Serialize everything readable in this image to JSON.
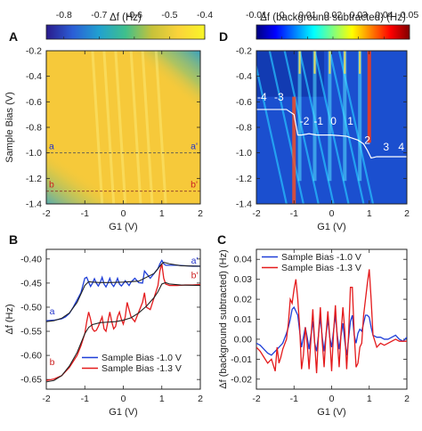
{
  "colors": {
    "map_scale": [
      "#2a1a8c",
      "#2b5ed6",
      "#21a1d0",
      "#3fc08c",
      "#c6c23a",
      "#fbd33a",
      "#f8f528"
    ],
    "jet_scale": [
      "#00007f",
      "#0000ff",
      "#007fff",
      "#00ffff",
      "#7fff7f",
      "#ffff00",
      "#ff7f00",
      "#ff0000",
      "#7f0000"
    ],
    "series_blue": "#1f3fd8",
    "series_red": "#e41a1c",
    "fit_black": "#222222",
    "marker_blue": "#2233cc",
    "marker_red": "#cc2222"
  },
  "chart_data": [
    {
      "id": "A",
      "type": "heatmap",
      "panel_label": "A",
      "colorbar": {
        "title": "Δf (Hz)",
        "range": [
          -0.85,
          -0.4
        ],
        "ticks": [
          "-0.8",
          "-0.7",
          "-0.6",
          "-0.5",
          "-0.4"
        ],
        "tick_values": [
          -0.8,
          -0.7,
          -0.6,
          -0.5,
          -0.4
        ]
      },
      "xlabel": "G1 (V)",
      "ylabel": "Sample Bias (V)",
      "xlim": [
        -2,
        2
      ],
      "ylim": [
        -1.4,
        -0.2
      ],
      "xticks": [
        -2,
        -1,
        0,
        1,
        2
      ],
      "xtick_labels": [
        "-2",
        "-1",
        "0",
        "1",
        "2"
      ],
      "yticks": [
        -0.2,
        -0.4,
        -0.6,
        -0.8,
        -1.0,
        -1.2,
        -1.4
      ],
      "ytick_labels": [
        "-0.2",
        "-0.4",
        "-0.6",
        "-0.8",
        "-1.0",
        "-1.2",
        "-1.4"
      ],
      "cut_lines": [
        {
          "bias": -1.0,
          "label_left": "a",
          "label_right": "a'"
        },
        {
          "bias": -1.3,
          "label_left": "b",
          "label_right": "b'"
        }
      ]
    },
    {
      "id": "D",
      "type": "heatmap",
      "panel_label": "D",
      "colorbar": {
        "title": "Δf (background subtracted) (Hz)",
        "range": [
          -0.01,
          0.05
        ],
        "ticks": [
          "-0.01",
          "0",
          "0.01",
          "0.02",
          "0.03",
          "0.04",
          "0.05"
        ],
        "tick_values": [
          -0.01,
          0,
          0.01,
          0.02,
          0.03,
          0.04,
          0.05
        ]
      },
      "xlabel": "G1 (V)",
      "xlim": [
        -2,
        2
      ],
      "ylim": [
        -1.4,
        -0.2
      ],
      "xticks": [
        -2,
        -1,
        0,
        1,
        2
      ],
      "xtick_labels": [
        "-2",
        "-1",
        "0",
        "1",
        "2"
      ],
      "yticks": [
        -0.2,
        -0.4,
        -0.6,
        -0.8,
        -1.0,
        -1.2,
        -1.4
      ],
      "ytick_labels": [
        "-0.2",
        "-0.4",
        "-0.6",
        "-0.8",
        "-1.0",
        "-1.2",
        "-1.4"
      ],
      "charge_labels": [
        {
          "text": "-4",
          "g1": -1.85,
          "bias": -0.59
        },
        {
          "text": "-3",
          "g1": -1.4,
          "bias": -0.59
        },
        {
          "text": "-2",
          "g1": -0.72,
          "bias": -0.78
        },
        {
          "text": "-1",
          "g1": -0.35,
          "bias": -0.78
        },
        {
          "text": "0",
          "g1": 0.05,
          "bias": -0.78
        },
        {
          "text": "1",
          "g1": 0.5,
          "bias": -0.78
        },
        {
          "text": "2",
          "g1": 0.95,
          "bias": -0.93
        },
        {
          "text": "3",
          "g1": 1.45,
          "bias": -0.98
        },
        {
          "text": "4",
          "g1": 1.85,
          "bias": -0.98
        }
      ],
      "step_line": {
        "g1": [
          -2.0,
          -1.2,
          -1.0,
          -0.95,
          -0.9,
          -0.8,
          -0.6,
          -0.4,
          0.0,
          0.4,
          0.7,
          0.85,
          0.95,
          1.05,
          1.2,
          2.0
        ],
        "bias": [
          -0.66,
          -0.66,
          -0.7,
          -0.78,
          -0.86,
          -0.86,
          -0.85,
          -0.86,
          -0.86,
          -0.87,
          -0.9,
          -0.93,
          -0.98,
          -1.04,
          -1.03,
          -1.03
        ]
      }
    },
    {
      "id": "B",
      "type": "line",
      "panel_label": "B",
      "xlabel": "G1 (V)",
      "ylabel": "Δf (Hz)",
      "xlim": [
        -2,
        2
      ],
      "ylim": [
        -0.67,
        -0.38
      ],
      "xticks": [
        -2,
        -1,
        0,
        1,
        2
      ],
      "xtick_labels": [
        "-2",
        "-1",
        "0",
        "1",
        "2"
      ],
      "yticks": [
        -0.4,
        -0.45,
        -0.5,
        -0.55,
        -0.6,
        -0.65
      ],
      "ytick_labels": [
        "-0.40",
        "-0.45",
        "-0.50",
        "-0.55",
        "-0.60",
        "-0.65"
      ],
      "legend": {
        "position": "bottom-center",
        "entries": [
          "Sample Bias -1.0 V",
          "Sample Bias -1.3 V"
        ]
      },
      "markers": [
        {
          "text": "a",
          "g1": -1.85,
          "df": -0.515,
          "series": 0
        },
        {
          "text": "a'",
          "g1": 1.85,
          "df": -0.41,
          "series": 0
        },
        {
          "text": "b",
          "g1": -1.85,
          "df": -0.62,
          "series": 1
        },
        {
          "text": "b'",
          "g1": 1.85,
          "df": -0.44,
          "series": 1
        }
      ],
      "series": [
        {
          "name": "Sample Bias -1.0 V",
          "x": [
            -2.0,
            -1.8,
            -1.6,
            -1.5,
            -1.4,
            -1.3,
            -1.2,
            -1.1,
            -1.05,
            -1.0,
            -0.95,
            -0.9,
            -0.85,
            -0.8,
            -0.75,
            -0.7,
            -0.65,
            -0.6,
            -0.55,
            -0.5,
            -0.45,
            -0.4,
            -0.35,
            -0.3,
            -0.25,
            -0.2,
            -0.15,
            -0.1,
            -0.05,
            0.0,
            0.05,
            0.1,
            0.15,
            0.2,
            0.3,
            0.4,
            0.5,
            0.55,
            0.6,
            0.7,
            0.8,
            0.9,
            0.95,
            1.0,
            1.05,
            1.1,
            1.2,
            1.4,
            1.6,
            1.8,
            2.0
          ],
          "y": [
            -0.528,
            -0.527,
            -0.524,
            -0.52,
            -0.513,
            -0.5,
            -0.485,
            -0.47,
            -0.455,
            -0.44,
            -0.438,
            -0.448,
            -0.457,
            -0.45,
            -0.441,
            -0.45,
            -0.456,
            -0.449,
            -0.438,
            -0.452,
            -0.458,
            -0.45,
            -0.44,
            -0.452,
            -0.457,
            -0.45,
            -0.44,
            -0.452,
            -0.456,
            -0.451,
            -0.445,
            -0.45,
            -0.455,
            -0.448,
            -0.44,
            -0.449,
            -0.45,
            -0.425,
            -0.43,
            -0.44,
            -0.43,
            -0.42,
            -0.41,
            -0.403,
            -0.41,
            -0.413,
            -0.413,
            -0.413,
            -0.414,
            -0.415,
            -0.415
          ]
        },
        {
          "name": "Sample Bias -1.3 V",
          "x": [
            -2.0,
            -1.8,
            -1.6,
            -1.4,
            -1.2,
            -1.1,
            -1.0,
            -0.95,
            -0.9,
            -0.85,
            -0.8,
            -0.75,
            -0.7,
            -0.65,
            -0.6,
            -0.55,
            -0.5,
            -0.45,
            -0.4,
            -0.35,
            -0.3,
            -0.25,
            -0.2,
            -0.15,
            -0.1,
            -0.05,
            0.0,
            0.05,
            0.1,
            0.2,
            0.3,
            0.4,
            0.5,
            0.55,
            0.6,
            0.7,
            0.8,
            0.9,
            0.95,
            1.0,
            1.05,
            1.1,
            1.2,
            1.4,
            1.6,
            1.8,
            2.0
          ],
          "y": [
            -0.652,
            -0.649,
            -0.642,
            -0.625,
            -0.6,
            -0.58,
            -0.555,
            -0.53,
            -0.51,
            -0.525,
            -0.545,
            -0.55,
            -0.548,
            -0.54,
            -0.53,
            -0.52,
            -0.545,
            -0.55,
            -0.53,
            -0.51,
            -0.53,
            -0.545,
            -0.54,
            -0.52,
            -0.51,
            -0.525,
            -0.535,
            -0.52,
            -0.49,
            -0.52,
            -0.53,
            -0.51,
            -0.49,
            -0.47,
            -0.5,
            -0.505,
            -0.48,
            -0.455,
            -0.425,
            -0.41,
            -0.44,
            -0.452,
            -0.455,
            -0.455,
            -0.454,
            -0.454,
            -0.453
          ]
        },
        {
          "name": "",
          "x": [
            -2.0,
            -1.8,
            -1.6,
            -1.4,
            -1.2,
            -1.0,
            -0.9,
            -0.8,
            -0.6,
            -0.4,
            0.0,
            0.4,
            0.8,
            1.0,
            1.05,
            1.2,
            1.5,
            2.0
          ],
          "y": [
            -0.53,
            -0.528,
            -0.523,
            -0.512,
            -0.49,
            -0.455,
            -0.447,
            -0.448,
            -0.449,
            -0.449,
            -0.448,
            -0.446,
            -0.43,
            -0.41,
            -0.407,
            -0.41,
            -0.414,
            -0.415
          ]
        },
        {
          "name": "",
          "x": [
            -2.0,
            -1.8,
            -1.6,
            -1.4,
            -1.2,
            -1.0,
            -0.9,
            -0.8,
            -0.6,
            -0.4,
            -0.2,
            0.0,
            0.2,
            0.4,
            0.6,
            0.8,
            0.9,
            1.0,
            1.1,
            1.2,
            1.5,
            2.0
          ],
          "y": [
            -0.655,
            -0.652,
            -0.642,
            -0.622,
            -0.594,
            -0.555,
            -0.542,
            -0.536,
            -0.532,
            -0.531,
            -0.53,
            -0.527,
            -0.522,
            -0.512,
            -0.498,
            -0.48,
            -0.468,
            -0.452,
            -0.449,
            -0.452,
            -0.454,
            -0.455
          ]
        }
      ]
    },
    {
      "id": "C",
      "type": "line",
      "panel_label": "C",
      "xlabel": "G1 (V)",
      "ylabel": "Δf (background subtracted) (Hz)",
      "xlim": [
        -2,
        2
      ],
      "ylim": [
        -0.025,
        0.045
      ],
      "xticks": [
        -2,
        -1,
        0,
        1,
        2
      ],
      "xtick_labels": [
        "-2",
        "-1",
        "0",
        "1",
        "2"
      ],
      "yticks": [
        0.04,
        0.03,
        0.02,
        0.01,
        0.0,
        -0.01,
        -0.02
      ],
      "ytick_labels": [
        "0.04",
        "0.03",
        "0.02",
        "0.01",
        "0.00",
        "-0.01",
        "-0.02"
      ],
      "legend": {
        "position": "top-left",
        "entries": [
          "Sample Bias -1.0 V",
          "Sample Bias -1.3 V"
        ]
      },
      "series": [
        {
          "name": "Sample Bias -1.0 V",
          "x": [
            -2.0,
            -1.9,
            -1.8,
            -1.7,
            -1.6,
            -1.5,
            -1.4,
            -1.3,
            -1.2,
            -1.15,
            -1.1,
            -1.05,
            -1.0,
            -0.95,
            -0.9,
            -0.85,
            -0.8,
            -0.75,
            -0.7,
            -0.65,
            -0.6,
            -0.55,
            -0.5,
            -0.45,
            -0.4,
            -0.35,
            -0.3,
            -0.25,
            -0.2,
            -0.15,
            -0.1,
            -0.05,
            0.0,
            0.05,
            0.1,
            0.15,
            0.2,
            0.25,
            0.3,
            0.35,
            0.4,
            0.45,
            0.5,
            0.55,
            0.6,
            0.65,
            0.7,
            0.75,
            0.8,
            0.85,
            0.9,
            0.95,
            1.0,
            1.05,
            1.1,
            1.2,
            1.3,
            1.4,
            1.5,
            1.6,
            1.7,
            1.8,
            1.9,
            2.0
          ],
          "y": [
            -0.002,
            -0.003,
            -0.005,
            -0.007,
            -0.008,
            -0.006,
            -0.004,
            -0.002,
            0.003,
            0.006,
            0.01,
            0.015,
            0.016,
            0.014,
            0.012,
            0.004,
            -0.004,
            0.001,
            0.006,
            0.001,
            -0.005,
            0.002,
            0.009,
            -0.002,
            -0.006,
            0.002,
            0.011,
            0.001,
            -0.006,
            0.002,
            0.01,
            0.001,
            -0.004,
            0.004,
            0.012,
            0.002,
            -0.005,
            0.002,
            0.008,
            -0.001,
            -0.008,
            0.0,
            0.009,
            0.012,
            0.002,
            -0.002,
            0.003,
            0.005,
            0.004,
            0.008,
            0.012,
            0.012,
            0.011,
            0.006,
            0.002,
            0.001,
            0.001,
            0.0,
            0.0,
            0.001,
            0.002,
            0.0,
            -0.001,
            0.001
          ]
        },
        {
          "name": "Sample Bias -1.3 V",
          "x": [
            -2.0,
            -1.9,
            -1.8,
            -1.7,
            -1.6,
            -1.5,
            -1.45,
            -1.4,
            -1.35,
            -1.3,
            -1.2,
            -1.15,
            -1.1,
            -1.05,
            -1.0,
            -0.95,
            -0.9,
            -0.85,
            -0.8,
            -0.75,
            -0.7,
            -0.65,
            -0.6,
            -0.55,
            -0.5,
            -0.45,
            -0.4,
            -0.35,
            -0.3,
            -0.25,
            -0.2,
            -0.15,
            -0.1,
            -0.05,
            0.0,
            0.05,
            0.1,
            0.15,
            0.2,
            0.25,
            0.3,
            0.35,
            0.4,
            0.45,
            0.5,
            0.55,
            0.6,
            0.65,
            0.7,
            0.75,
            0.8,
            0.85,
            0.9,
            0.95,
            1.0,
            1.05,
            1.1,
            1.2,
            1.3,
            1.4,
            1.5,
            1.6,
            1.7,
            1.8,
            1.9,
            2.0
          ],
          "y": [
            -0.004,
            -0.006,
            -0.009,
            -0.012,
            -0.01,
            -0.016,
            -0.004,
            -0.012,
            -0.009,
            -0.005,
            0.0,
            0.008,
            0.02,
            0.018,
            0.025,
            0.03,
            0.02,
            0.006,
            -0.015,
            -0.008,
            0.006,
            -0.002,
            -0.015,
            0.0,
            0.015,
            -0.002,
            -0.017,
            0.002,
            0.016,
            -0.001,
            -0.014,
            0.002,
            0.014,
            0.001,
            -0.016,
            0.003,
            0.017,
            0.0,
            -0.014,
            0.003,
            0.016,
            0.004,
            -0.015,
            0.002,
            0.026,
            0.026,
            0.003,
            -0.014,
            -0.012,
            -0.004,
            -0.002,
            0.012,
            0.02,
            0.028,
            0.035,
            0.02,
            0.002,
            -0.004,
            -0.002,
            -0.003,
            -0.002,
            -0.001,
            0.0,
            -0.001,
            -0.001,
            -0.001
          ]
        }
      ]
    }
  ]
}
